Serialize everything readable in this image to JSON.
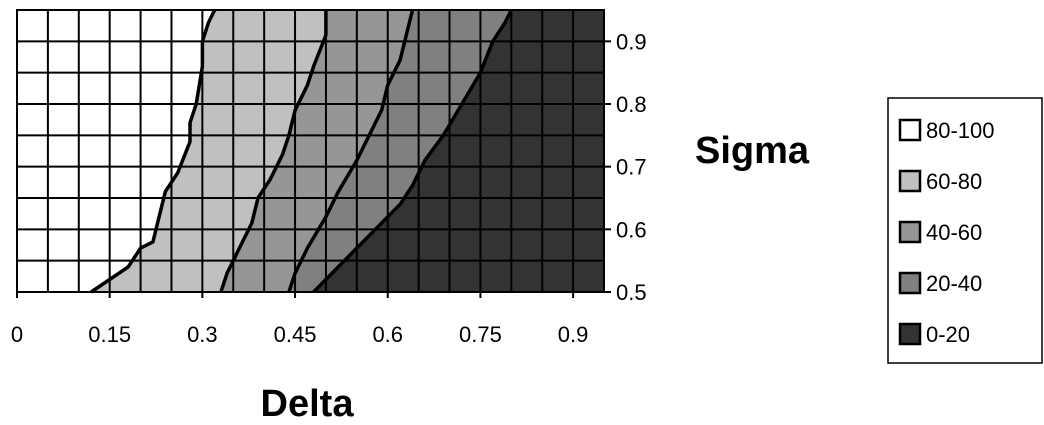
{
  "chart_data": {
    "type": "heatmap",
    "xlabel": "Delta",
    "ylabel": "Sigma",
    "xlim": [
      0,
      0.95
    ],
    "ylim": [
      0.5,
      0.95
    ],
    "xticks": [
      {
        "value": 0,
        "label": "0"
      },
      {
        "value": 0.15,
        "label": "0.15"
      },
      {
        "value": 0.3,
        "label": "0.3"
      },
      {
        "value": 0.45,
        "label": "0.45"
      },
      {
        "value": 0.6,
        "label": "0.6"
      },
      {
        "value": 0.75,
        "label": "0.75"
      },
      {
        "value": 0.9,
        "label": "0.9"
      }
    ],
    "yticks": [
      {
        "value": 0.5,
        "label": "0.5"
      },
      {
        "value": 0.6,
        "label": "0.6"
      },
      {
        "value": 0.7,
        "label": "0.7"
      },
      {
        "value": 0.8,
        "label": "0.8"
      },
      {
        "value": 0.9,
        "label": "0.9"
      }
    ],
    "grid": true,
    "legend_position": "right",
    "levels": [
      {
        "label": "80-100",
        "color": "#ffffff"
      },
      {
        "label": "60-80",
        "color": "#c0c0c0"
      },
      {
        "label": "40-60",
        "color": "#969696"
      },
      {
        "label": "20-40",
        "color": "#808080"
      },
      {
        "label": "0-20",
        "color": "#333333"
      }
    ],
    "contours": [
      {
        "level": 80,
        "points": [
          [
            0.12,
            0.5
          ],
          [
            0.15,
            0.52
          ],
          [
            0.18,
            0.54
          ],
          [
            0.2,
            0.57
          ],
          [
            0.22,
            0.58
          ],
          [
            0.23,
            0.62
          ],
          [
            0.24,
            0.66
          ],
          [
            0.26,
            0.69
          ],
          [
            0.28,
            0.74
          ],
          [
            0.28,
            0.77
          ],
          [
            0.29,
            0.8
          ],
          [
            0.3,
            0.86
          ],
          [
            0.3,
            0.9
          ],
          [
            0.31,
            0.93
          ],
          [
            0.32,
            0.95
          ]
        ]
      },
      {
        "level": 60,
        "points": [
          [
            0.33,
            0.5
          ],
          [
            0.34,
            0.53
          ],
          [
            0.36,
            0.57
          ],
          [
            0.38,
            0.61
          ],
          [
            0.39,
            0.65
          ],
          [
            0.41,
            0.68
          ],
          [
            0.43,
            0.72
          ],
          [
            0.44,
            0.75
          ],
          [
            0.45,
            0.79
          ],
          [
            0.47,
            0.83
          ],
          [
            0.48,
            0.86
          ],
          [
            0.5,
            0.91
          ],
          [
            0.5,
            0.95
          ]
        ]
      },
      {
        "level": 40,
        "points": [
          [
            0.44,
            0.5
          ],
          [
            0.45,
            0.53
          ],
          [
            0.47,
            0.57
          ],
          [
            0.5,
            0.62
          ],
          [
            0.52,
            0.66
          ],
          [
            0.55,
            0.71
          ],
          [
            0.57,
            0.75
          ],
          [
            0.59,
            0.79
          ],
          [
            0.6,
            0.83
          ],
          [
            0.62,
            0.87
          ],
          [
            0.63,
            0.91
          ],
          [
            0.64,
            0.95
          ]
        ]
      },
      {
        "level": 20,
        "points": [
          [
            0.48,
            0.5
          ],
          [
            0.5,
            0.52
          ],
          [
            0.52,
            0.54
          ],
          [
            0.55,
            0.57
          ],
          [
            0.58,
            0.6
          ],
          [
            0.6,
            0.62
          ],
          [
            0.62,
            0.64
          ],
          [
            0.64,
            0.67
          ],
          [
            0.66,
            0.71
          ],
          [
            0.69,
            0.75
          ],
          [
            0.72,
            0.8
          ],
          [
            0.75,
            0.85
          ],
          [
            0.77,
            0.9
          ],
          [
            0.79,
            0.93
          ],
          [
            0.8,
            0.95
          ]
        ]
      }
    ]
  }
}
